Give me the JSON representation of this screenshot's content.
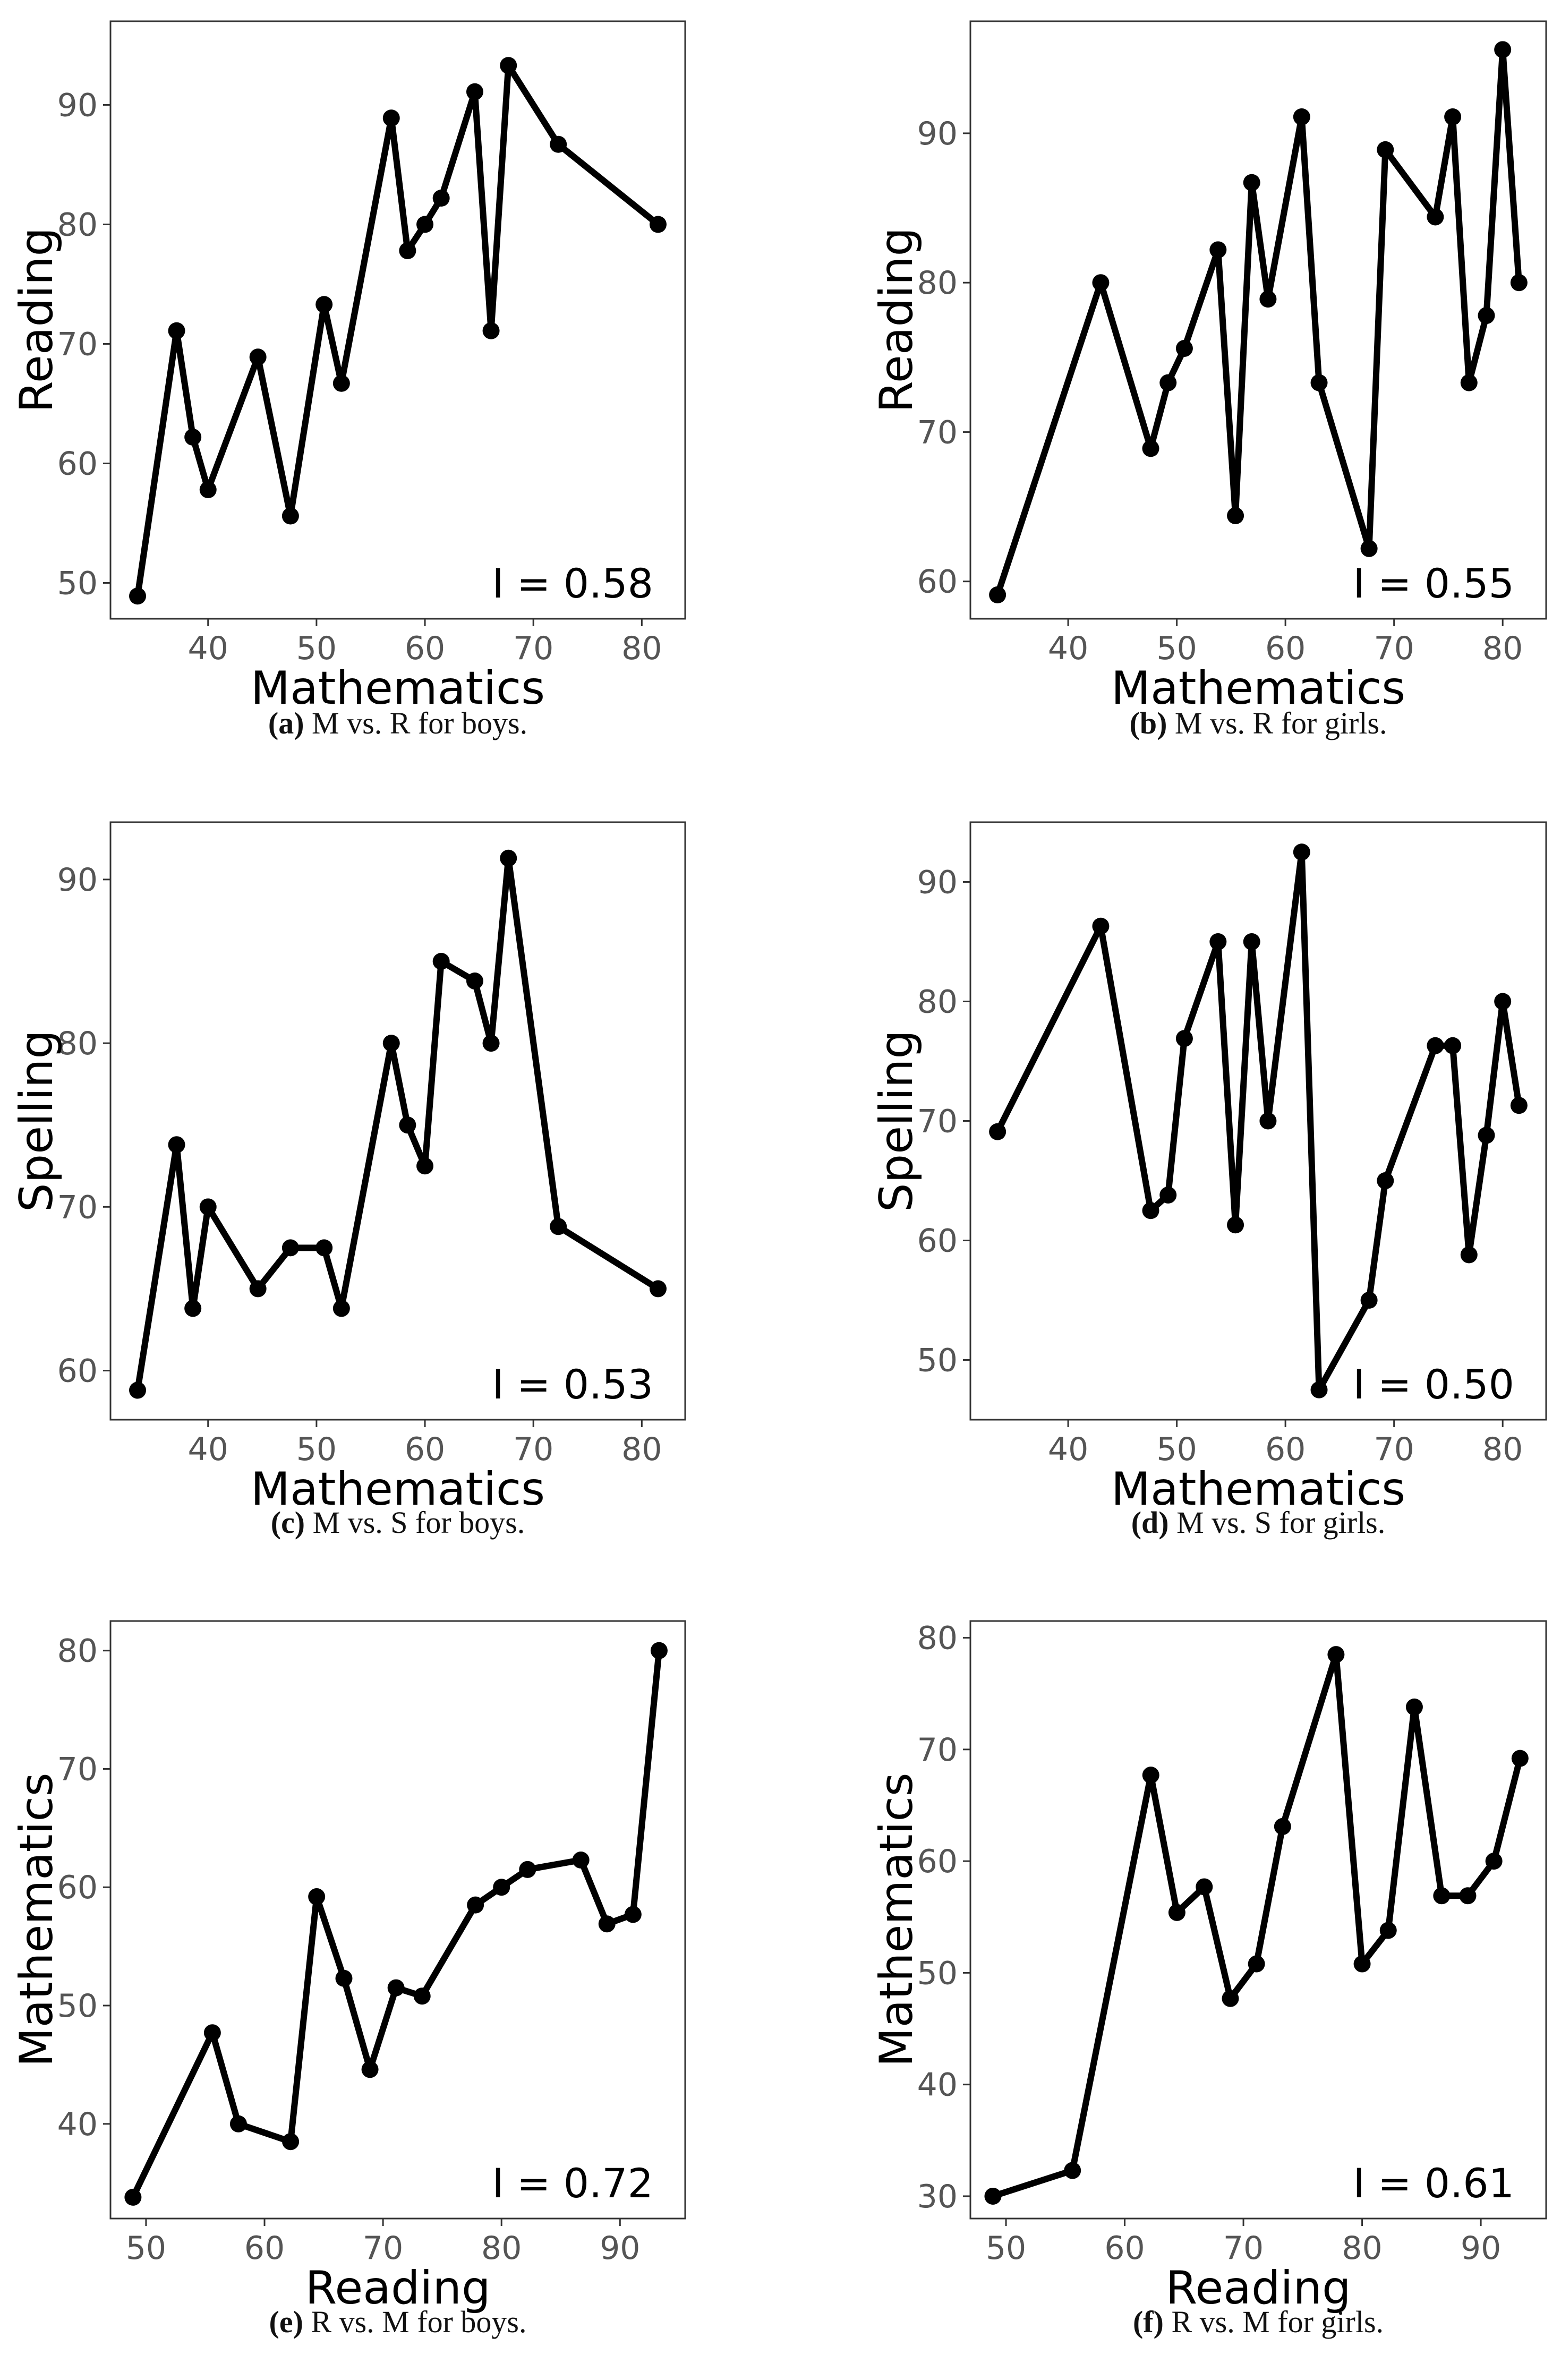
{
  "colors": {
    "line": "#000000",
    "frame": "#333333",
    "tick_text": "#555555",
    "background": "#ffffff"
  },
  "chart_data": [
    {
      "id": "a",
      "type": "line",
      "xlabel": "Mathematics",
      "ylabel": "Reading",
      "xlim": [
        31,
        84
      ],
      "ylim": [
        47,
        97
      ],
      "xticks": [
        40,
        50,
        60,
        70,
        80
      ],
      "yticks": [
        50,
        60,
        70,
        80,
        90
      ],
      "annotation": "I = 0.58",
      "caption_label": "(a)",
      "caption_text": "M vs. R for boys.",
      "x": [
        33.5,
        37.1,
        38.6,
        40.0,
        44.6,
        47.6,
        50.7,
        52.3,
        56.9,
        58.4,
        60.0,
        61.5,
        64.6,
        66.1,
        67.7,
        72.3,
        81.5
      ],
      "y": [
        48.9,
        71.1,
        62.2,
        57.8,
        68.9,
        55.6,
        73.3,
        66.7,
        88.9,
        77.8,
        80.0,
        82.2,
        91.1,
        71.1,
        93.3,
        86.7,
        80.0
      ]
    },
    {
      "id": "b",
      "type": "line",
      "xlabel": "Mathematics",
      "ylabel": "Reading",
      "xlim": [
        31,
        84
      ],
      "ylim": [
        57.5,
        97.5
      ],
      "xticks": [
        40,
        50,
        60,
        70,
        80
      ],
      "yticks": [
        60,
        70,
        80,
        90
      ],
      "annotation": "I = 0.55",
      "caption_label": "(b)",
      "caption_text": "M vs. R for girls.",
      "x": [
        33.5,
        43.0,
        47.6,
        49.2,
        50.7,
        53.8,
        55.4,
        56.9,
        58.4,
        61.5,
        63.1,
        67.7,
        69.2,
        73.8,
        75.4,
        76.9,
        78.5,
        80.0,
        81.5
      ],
      "y": [
        59.1,
        80.0,
        68.9,
        73.3,
        75.6,
        82.2,
        64.4,
        86.7,
        78.9,
        91.1,
        73.3,
        62.2,
        88.9,
        84.4,
        91.1,
        73.3,
        77.8,
        95.6,
        80.0
      ]
    },
    {
      "id": "c",
      "type": "line",
      "xlabel": "Mathematics",
      "ylabel": "Spelling",
      "xlim": [
        31,
        84
      ],
      "ylim": [
        57,
        93.5
      ],
      "xticks": [
        40,
        50,
        60,
        70,
        80
      ],
      "yticks": [
        60,
        70,
        80,
        90
      ],
      "annotation": "I = 0.53",
      "caption_label": "(c)",
      "caption_text": "M vs. S for boys.",
      "x": [
        33.5,
        37.1,
        38.6,
        40.0,
        44.6,
        47.6,
        50.7,
        52.3,
        56.9,
        58.4,
        60.0,
        61.5,
        64.6,
        66.1,
        67.7,
        72.3,
        81.5
      ],
      "y": [
        58.8,
        73.8,
        63.8,
        70.0,
        65.0,
        67.5,
        67.5,
        63.8,
        80.0,
        75.0,
        72.5,
        85.0,
        83.8,
        80.0,
        91.3,
        68.8,
        65.0
      ]
    },
    {
      "id": "d",
      "type": "line",
      "xlabel": "Mathematics",
      "ylabel": "Spelling",
      "xlim": [
        31,
        84
      ],
      "ylim": [
        45,
        95
      ],
      "xticks": [
        40,
        50,
        60,
        70,
        80
      ],
      "yticks": [
        50,
        60,
        70,
        80,
        90
      ],
      "annotation": "I = 0.50",
      "caption_label": "(d)",
      "caption_text": "M vs. S for girls.",
      "x": [
        33.5,
        43.0,
        47.6,
        49.2,
        50.7,
        53.8,
        55.4,
        56.9,
        58.4,
        61.5,
        63.1,
        67.7,
        69.2,
        73.8,
        75.4,
        76.9,
        78.5,
        80.0,
        81.5
      ],
      "y": [
        69.1,
        86.3,
        62.5,
        63.8,
        76.9,
        85.0,
        61.3,
        85.0,
        70.0,
        92.5,
        47.5,
        55.0,
        65.0,
        76.3,
        76.3,
        58.8,
        68.8,
        80.0,
        71.3
      ]
    },
    {
      "id": "e",
      "type": "line",
      "xlabel": "Reading",
      "ylabel": "Mathematics",
      "xlim": [
        47,
        95.5
      ],
      "ylim": [
        32,
        82.5
      ],
      "xticks": [
        50,
        60,
        70,
        80,
        90
      ],
      "yticks": [
        40,
        50,
        60,
        70,
        80
      ],
      "annotation": "I = 0.72",
      "caption_label": "(e)",
      "caption_text": "R vs. M for boys.",
      "x": [
        48.9,
        55.6,
        57.8,
        62.2,
        64.4,
        66.7,
        68.9,
        71.1,
        73.3,
        77.8,
        80.0,
        82.2,
        86.7,
        88.9,
        91.1,
        93.3
      ],
      "y": [
        33.8,
        47.7,
        40.0,
        38.5,
        59.2,
        52.3,
        44.6,
        51.5,
        50.8,
        58.5,
        60.0,
        61.5,
        62.3,
        56.9,
        57.7,
        80.0
      ]
    },
    {
      "id": "f",
      "type": "line",
      "xlabel": "Reading",
      "ylabel": "Mathematics",
      "xlim": [
        47,
        95.5
      ],
      "ylim": [
        28,
        81.5
      ],
      "xticks": [
        50,
        60,
        70,
        80,
        90
      ],
      "yticks": [
        30,
        40,
        50,
        60,
        70,
        80
      ],
      "annotation": "I = 0.61",
      "caption_label": "(f)",
      "caption_text": "R vs. M for girls.",
      "x": [
        48.9,
        55.6,
        62.2,
        64.4,
        66.7,
        68.9,
        71.1,
        73.3,
        77.8,
        80.0,
        82.2,
        84.4,
        86.7,
        88.9,
        91.1,
        93.3
      ],
      "y": [
        30.0,
        32.3,
        67.7,
        55.4,
        57.7,
        47.7,
        50.8,
        63.1,
        78.5,
        50.8,
        53.8,
        73.8,
        56.9,
        56.9,
        60.0,
        69.2
      ]
    }
  ]
}
